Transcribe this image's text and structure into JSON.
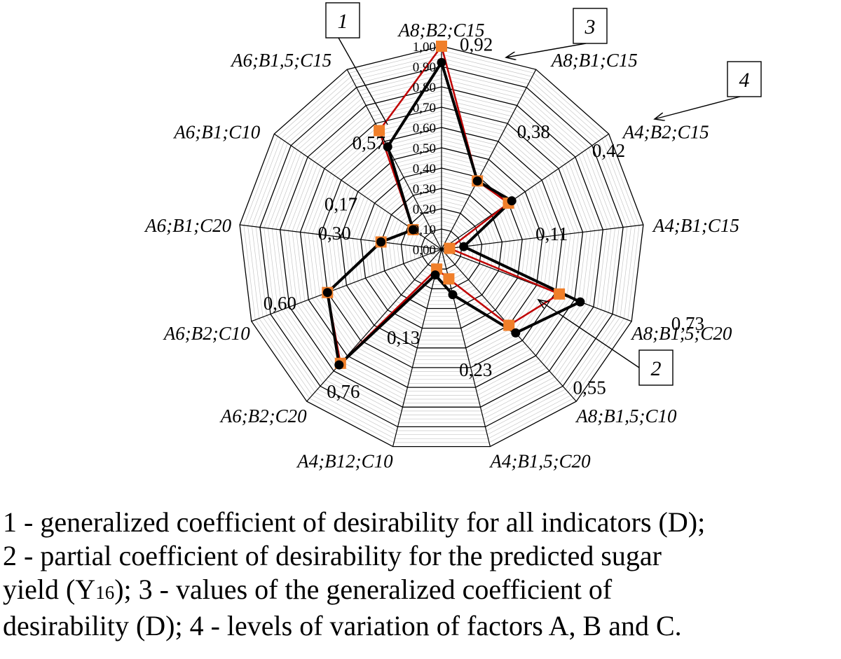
{
  "chart_data": {
    "type": "radar",
    "categories": [
      "A8;B2;C15",
      "A8;B1;C15",
      "A4;B2;C15",
      "A4;B1;C15",
      "A8;B1,5;C20",
      "A8;B1,5;C10",
      "A4;B1,5;C20",
      "A4;B12;C10",
      "A6;B2;C20",
      "A6;B2;C10",
      "A6;B1;C20",
      "A6;B1;C10",
      "A6;B1,5;C15"
    ],
    "rlim": [
      0,
      1
    ],
    "ticks": [
      "0,00",
      "0,10",
      "0,20",
      "0,30",
      "0,40",
      "0,50",
      "0,60",
      "0,70",
      "0,80",
      "0,90",
      "1,00"
    ],
    "grid": true,
    "series": [
      {
        "key": "D",
        "color": "#000000",
        "marker": "circle",
        "values": [
          0.92,
          0.38,
          0.42,
          0.11,
          0.73,
          0.55,
          0.23,
          0.13,
          0.76,
          0.6,
          0.3,
          0.17,
          0.57
        ]
      },
      {
        "key": "Y16",
        "color": "#c00000",
        "marker_color": "#f07f2a",
        "marker": "square",
        "values": [
          1.0,
          0.38,
          0.4,
          0.04,
          0.62,
          0.5,
          0.15,
          0.1,
          0.75,
          0.6,
          0.3,
          0.17,
          0.66
        ]
      }
    ],
    "value_labels": [
      "0,92",
      "0,38",
      "0,42",
      "0,11",
      "0,73",
      "0,55",
      "0,23",
      "0,13",
      "0,76",
      "0,60",
      "0,30",
      "0,17",
      "0,57"
    ],
    "callouts": [
      "1",
      "2",
      "3",
      "4"
    ]
  },
  "caption": {
    "line1": "1 - generalized coefficient of desirability for all indicators (D);",
    "line2": "2 - partial coefficient of desirability for the predicted sugar",
    "line3_pre": "yield (Y",
    "line3_sub": "16",
    "line3_post": "); 3 - values of the generalized coefficient of",
    "line4": "desirability (D); 4 - levels of variation of factors A, B and C."
  }
}
